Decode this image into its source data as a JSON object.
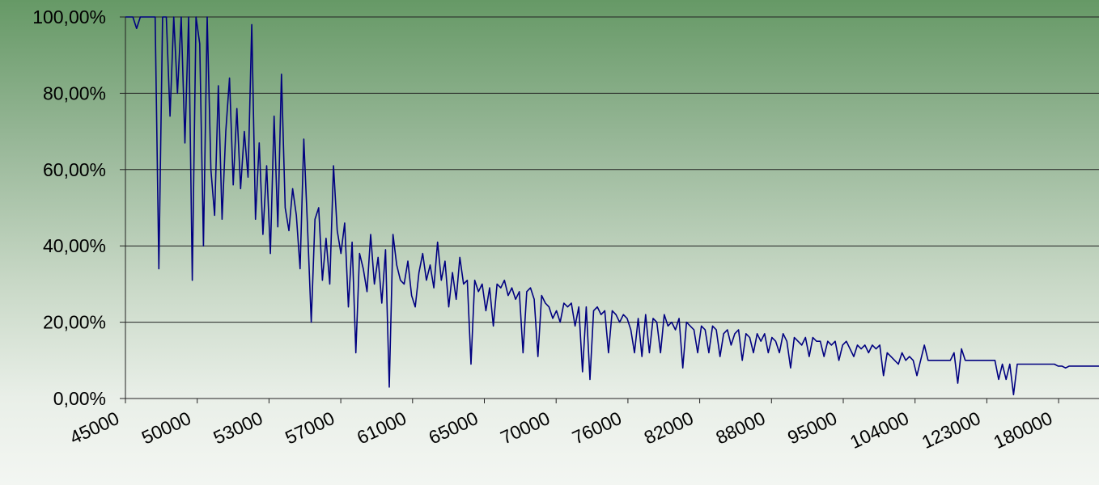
{
  "chart_data": {
    "type": "line",
    "title": "",
    "xlabel": "",
    "ylabel": "",
    "y_format": "percent_comma_2dp",
    "ylim": [
      0,
      1
    ],
    "y_ticks": [
      0,
      0.2,
      0.4,
      0.6,
      0.8,
      1.0
    ],
    "y_tick_labels": [
      "0,00%",
      "20,00%",
      "40,00%",
      "60,00%",
      "80,00%",
      "100,00%"
    ],
    "x_tick_labels": [
      "45000",
      "50000",
      "53000",
      "57000",
      "61000",
      "65000",
      "70000",
      "76000",
      "82000",
      "88000",
      "95000",
      "104000",
      "123000",
      "180000"
    ],
    "x_axis": "categorical (unevenly spaced ordered values); tick labels shown every ~1/13.2 of the axis",
    "grid": "horizontal major gridlines",
    "legend": "none",
    "line_color": "#000080",
    "series": [
      {
        "values": [
          1.0,
          1.0,
          1.0,
          0.97,
          1.0,
          1.0,
          1.0,
          1.0,
          1.0,
          0.34,
          1.0,
          1.0,
          0.74,
          1.0,
          0.8,
          1.0,
          0.67,
          1.0,
          0.31,
          1.0,
          0.93,
          0.4,
          1.0,
          0.6,
          0.48,
          0.82,
          0.47,
          0.7,
          0.84,
          0.56,
          0.76,
          0.55,
          0.7,
          0.58,
          0.98,
          0.47,
          0.67,
          0.43,
          0.61,
          0.38,
          0.74,
          0.45,
          0.85,
          0.5,
          0.44,
          0.55,
          0.48,
          0.34,
          0.68,
          0.45,
          0.2,
          0.47,
          0.5,
          0.31,
          0.42,
          0.3,
          0.61,
          0.44,
          0.38,
          0.46,
          0.24,
          0.41,
          0.12,
          0.38,
          0.34,
          0.28,
          0.43,
          0.3,
          0.37,
          0.25,
          0.39,
          0.03,
          0.43,
          0.35,
          0.31,
          0.3,
          0.36,
          0.27,
          0.24,
          0.33,
          0.38,
          0.31,
          0.35,
          0.29,
          0.41,
          0.31,
          0.36,
          0.24,
          0.33,
          0.26,
          0.37,
          0.3,
          0.31,
          0.09,
          0.31,
          0.28,
          0.3,
          0.23,
          0.29,
          0.19,
          0.3,
          0.29,
          0.31,
          0.27,
          0.29,
          0.26,
          0.28,
          0.12,
          0.28,
          0.29,
          0.26,
          0.11,
          0.27,
          0.25,
          0.24,
          0.21,
          0.23,
          0.2,
          0.25,
          0.24,
          0.25,
          0.19,
          0.24,
          0.07,
          0.24,
          0.05,
          0.23,
          0.24,
          0.22,
          0.23,
          0.12,
          0.23,
          0.22,
          0.2,
          0.22,
          0.21,
          0.18,
          0.12,
          0.21,
          0.11,
          0.22,
          0.12,
          0.21,
          0.2,
          0.12,
          0.22,
          0.19,
          0.2,
          0.18,
          0.21,
          0.08,
          0.2,
          0.19,
          0.18,
          0.12,
          0.19,
          0.18,
          0.12,
          0.19,
          0.18,
          0.11,
          0.17,
          0.18,
          0.14,
          0.17,
          0.18,
          0.1,
          0.17,
          0.16,
          0.12,
          0.17,
          0.15,
          0.17,
          0.12,
          0.16,
          0.15,
          0.12,
          0.17,
          0.15,
          0.08,
          0.16,
          0.15,
          0.14,
          0.16,
          0.11,
          0.16,
          0.15,
          0.15,
          0.11,
          0.15,
          0.14,
          0.15,
          0.1,
          0.14,
          0.15,
          0.13,
          0.11,
          0.14,
          0.13,
          0.14,
          0.12,
          0.14,
          0.13,
          0.14,
          0.06,
          0.12,
          0.11,
          0.1,
          0.09,
          0.12,
          0.1,
          0.11,
          0.1,
          0.06,
          0.1,
          0.14,
          0.1,
          0.1,
          0.1,
          0.1,
          0.1,
          0.1,
          0.1,
          0.12,
          0.04,
          0.13,
          0.1,
          0.1,
          0.1,
          0.1,
          0.1,
          0.1,
          0.1,
          0.1,
          0.1,
          0.05,
          0.09,
          0.05,
          0.09,
          0.01,
          0.09,
          0.09,
          0.09,
          0.09,
          0.09,
          0.09,
          0.09,
          0.09,
          0.09,
          0.09,
          0.09,
          0.085,
          0.085,
          0.08,
          0.085,
          0.085,
          0.085,
          0.085,
          0.085,
          0.085,
          0.085,
          0.085,
          0.085
        ]
      }
    ]
  }
}
